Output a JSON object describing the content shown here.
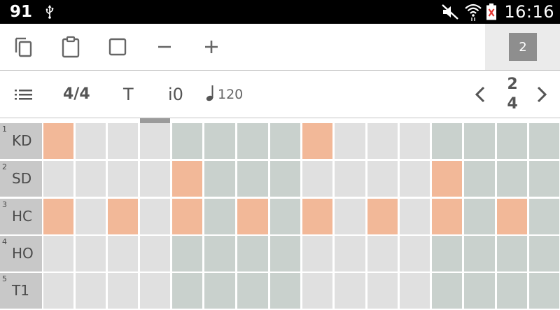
{
  "status_bar": {
    "battery_number": "91",
    "time": "16:16",
    "icons": [
      "usb-icon",
      "mute-icon",
      "wifi-icon",
      "battery-empty-icon"
    ]
  },
  "toolbar": {
    "icons": [
      "copy-icon",
      "paste-icon",
      "stop-icon",
      "minus-icon",
      "plus-icon"
    ],
    "pattern_number": "2"
  },
  "settings": {
    "menu_icon": "list-icon",
    "time_signature": "4/4",
    "transpose_label": "T",
    "instrument_label": "i0",
    "note_icon": "quarter-note-icon",
    "tempo": "120",
    "page_current": "2",
    "page_total": "4"
  },
  "colors": {
    "active_step": "#f2b898",
    "beat_light": "#e0e0e0",
    "beat_dark": "#c9d1cd",
    "label_bg": "#c8c8c8"
  },
  "tracks": [
    {
      "index": "1",
      "name": "KD",
      "steps": [
        1,
        0,
        0,
        0,
        0,
        0,
        0,
        0,
        1,
        0,
        0,
        0,
        0,
        0,
        0,
        0
      ]
    },
    {
      "index": "2",
      "name": "SD",
      "steps": [
        0,
        0,
        0,
        0,
        1,
        0,
        0,
        0,
        0,
        0,
        0,
        0,
        1,
        0,
        0,
        0
      ]
    },
    {
      "index": "3",
      "name": "HC",
      "steps": [
        1,
        0,
        1,
        0,
        1,
        0,
        1,
        0,
        1,
        0,
        1,
        0,
        1,
        0,
        1,
        0
      ]
    },
    {
      "index": "4",
      "name": "HO",
      "steps": [
        0,
        0,
        0,
        0,
        0,
        0,
        0,
        0,
        0,
        0,
        0,
        0,
        0,
        0,
        0,
        0
      ]
    },
    {
      "index": "5",
      "name": "T1",
      "steps": [
        0,
        0,
        0,
        0,
        0,
        0,
        0,
        0,
        0,
        0,
        0,
        0,
        0,
        0,
        0,
        0
      ]
    }
  ],
  "playhead_step": 4
}
